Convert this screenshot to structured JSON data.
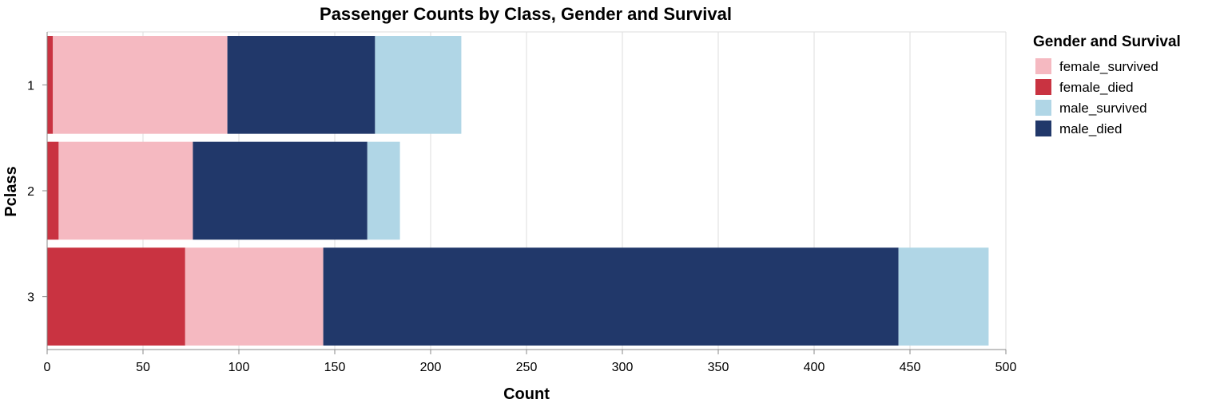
{
  "chart_data": {
    "type": "bar",
    "orientation": "horizontal",
    "stacked": true,
    "title": "Passenger Counts by Class, Gender and Survival",
    "xlabel": "Count",
    "ylabel": "Pclass",
    "xlim": [
      0,
      500
    ],
    "x_ticks": [
      0,
      50,
      100,
      150,
      200,
      250,
      300,
      350,
      400,
      450,
      500
    ],
    "categories": [
      "1",
      "2",
      "3"
    ],
    "grid": true,
    "legend": {
      "title": "Gender and Survival",
      "placement": "top-right",
      "entries": [
        "female_survived",
        "female_died",
        "male_survived",
        "male_died"
      ]
    },
    "series": [
      {
        "name": "female_died",
        "color": "#c93341",
        "values": [
          3,
          6,
          72
        ]
      },
      {
        "name": "female_survived",
        "color": "#f5b9c1",
        "values": [
          91,
          70,
          72
        ]
      },
      {
        "name": "male_died",
        "color": "#21386a",
        "values": [
          77,
          91,
          300
        ]
      },
      {
        "name": "male_survived",
        "color": "#b0d6e6",
        "values": [
          45,
          17,
          47
        ]
      }
    ]
  }
}
